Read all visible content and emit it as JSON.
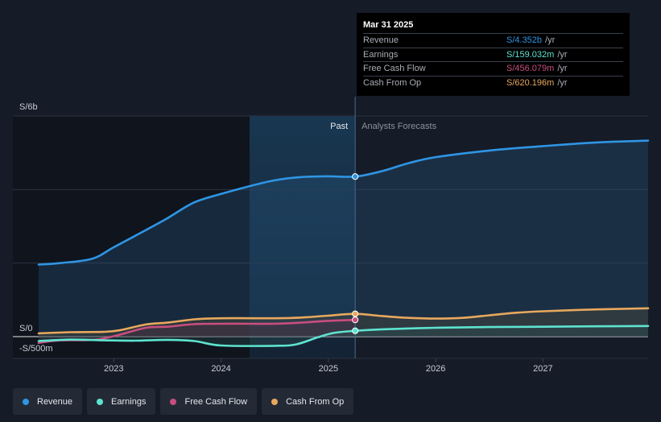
{
  "chart_data": {
    "type": "line",
    "y_axis": {
      "top_label": "S/6b",
      "zero_label": "S/0",
      "bottom_label": "-S/500m",
      "ylim_millions": [
        -500,
        6000
      ]
    },
    "x_axis": {
      "ticks": [
        "2023",
        "2024",
        "2025",
        "2026",
        "2027"
      ],
      "range": [
        2022.3,
        2027.98
      ]
    },
    "regions": {
      "past_label": "Past",
      "forecast_label": "Analysts Forecasts",
      "divider_x": 2025.25
    },
    "series": [
      {
        "key": "revenue",
        "name": "Revenue",
        "color": "#2f95e4",
        "points": [
          [
            2022.3,
            1960
          ],
          [
            2022.5,
            2000
          ],
          [
            2022.8,
            2120
          ],
          [
            2023.0,
            2430
          ],
          [
            2023.3,
            2900
          ],
          [
            2023.5,
            3220
          ],
          [
            2023.75,
            3650
          ],
          [
            2024.0,
            3880
          ],
          [
            2024.25,
            4080
          ],
          [
            2024.5,
            4250
          ],
          [
            2024.75,
            4340
          ],
          [
            2025.0,
            4360
          ],
          [
            2025.25,
            4352
          ],
          [
            2025.5,
            4500
          ],
          [
            2025.75,
            4720
          ],
          [
            2026.0,
            4880
          ],
          [
            2026.5,
            5060
          ],
          [
            2027.0,
            5180
          ],
          [
            2027.5,
            5280
          ],
          [
            2027.98,
            5330
          ]
        ]
      },
      {
        "key": "cfo",
        "name": "Cash From Op",
        "color": "#e8a85e",
        "points": [
          [
            2022.3,
            90
          ],
          [
            2022.6,
            120
          ],
          [
            2022.9,
            130
          ],
          [
            2023.05,
            170
          ],
          [
            2023.3,
            330
          ],
          [
            2023.5,
            380
          ],
          [
            2023.75,
            470
          ],
          [
            2024.0,
            500
          ],
          [
            2024.5,
            500
          ],
          [
            2024.75,
            520
          ],
          [
            2025.0,
            570
          ],
          [
            2025.25,
            620
          ],
          [
            2025.5,
            560
          ],
          [
            2025.75,
            510
          ],
          [
            2026.0,
            490
          ],
          [
            2026.25,
            510
          ],
          [
            2026.5,
            580
          ],
          [
            2026.75,
            650
          ],
          [
            2027.0,
            690
          ],
          [
            2027.5,
            740
          ],
          [
            2027.98,
            770
          ]
        ]
      },
      {
        "key": "fcf",
        "name": "Free Cash Flow",
        "color": "#c84e7f",
        "points": [
          [
            2022.3,
            -170
          ],
          [
            2022.5,
            -100
          ],
          [
            2022.8,
            -90
          ],
          [
            2023.0,
            10
          ],
          [
            2023.3,
            240
          ],
          [
            2023.5,
            270
          ],
          [
            2023.75,
            340
          ],
          [
            2024.0,
            350
          ],
          [
            2024.25,
            350
          ],
          [
            2024.5,
            350
          ],
          [
            2024.75,
            380
          ],
          [
            2025.0,
            430
          ],
          [
            2025.25,
            456
          ]
        ]
      },
      {
        "key": "earnings",
        "name": "Earnings",
        "color": "#5ee3d0",
        "points": [
          [
            2022.3,
            -120
          ],
          [
            2022.6,
            -80
          ],
          [
            2022.9,
            -100
          ],
          [
            2023.2,
            -110
          ],
          [
            2023.5,
            -90
          ],
          [
            2023.75,
            -120
          ],
          [
            2024.0,
            -240
          ],
          [
            2024.5,
            -250
          ],
          [
            2024.7,
            -210
          ],
          [
            2024.9,
            -20
          ],
          [
            2025.05,
            100
          ],
          [
            2025.25,
            159
          ],
          [
            2025.5,
            200
          ],
          [
            2026.0,
            240
          ],
          [
            2026.5,
            260
          ],
          [
            2027.0,
            270
          ],
          [
            2027.98,
            290
          ]
        ]
      }
    ]
  },
  "tooltip": {
    "date": "Mar 31 2025",
    "rows": [
      {
        "label": "Revenue",
        "value": "S/4.352b",
        "unit": "/yr",
        "color": "#2f95e4"
      },
      {
        "label": "Earnings",
        "value": "S/159.032m",
        "unit": "/yr",
        "color": "#5ee3d0"
      },
      {
        "label": "Free Cash Flow",
        "value": "S/456.079m",
        "unit": "/yr",
        "color": "#c84e7f"
      },
      {
        "label": "Cash From Op",
        "value": "S/620.196m",
        "unit": "/yr",
        "color": "#e8a85e"
      }
    ]
  },
  "legend": [
    {
      "label": "Revenue",
      "color": "#2f95e4"
    },
    {
      "label": "Earnings",
      "color": "#5ee3d0"
    },
    {
      "label": "Free Cash Flow",
      "color": "#c84e7f"
    },
    {
      "label": "Cash From Op",
      "color": "#e8a85e"
    }
  ]
}
